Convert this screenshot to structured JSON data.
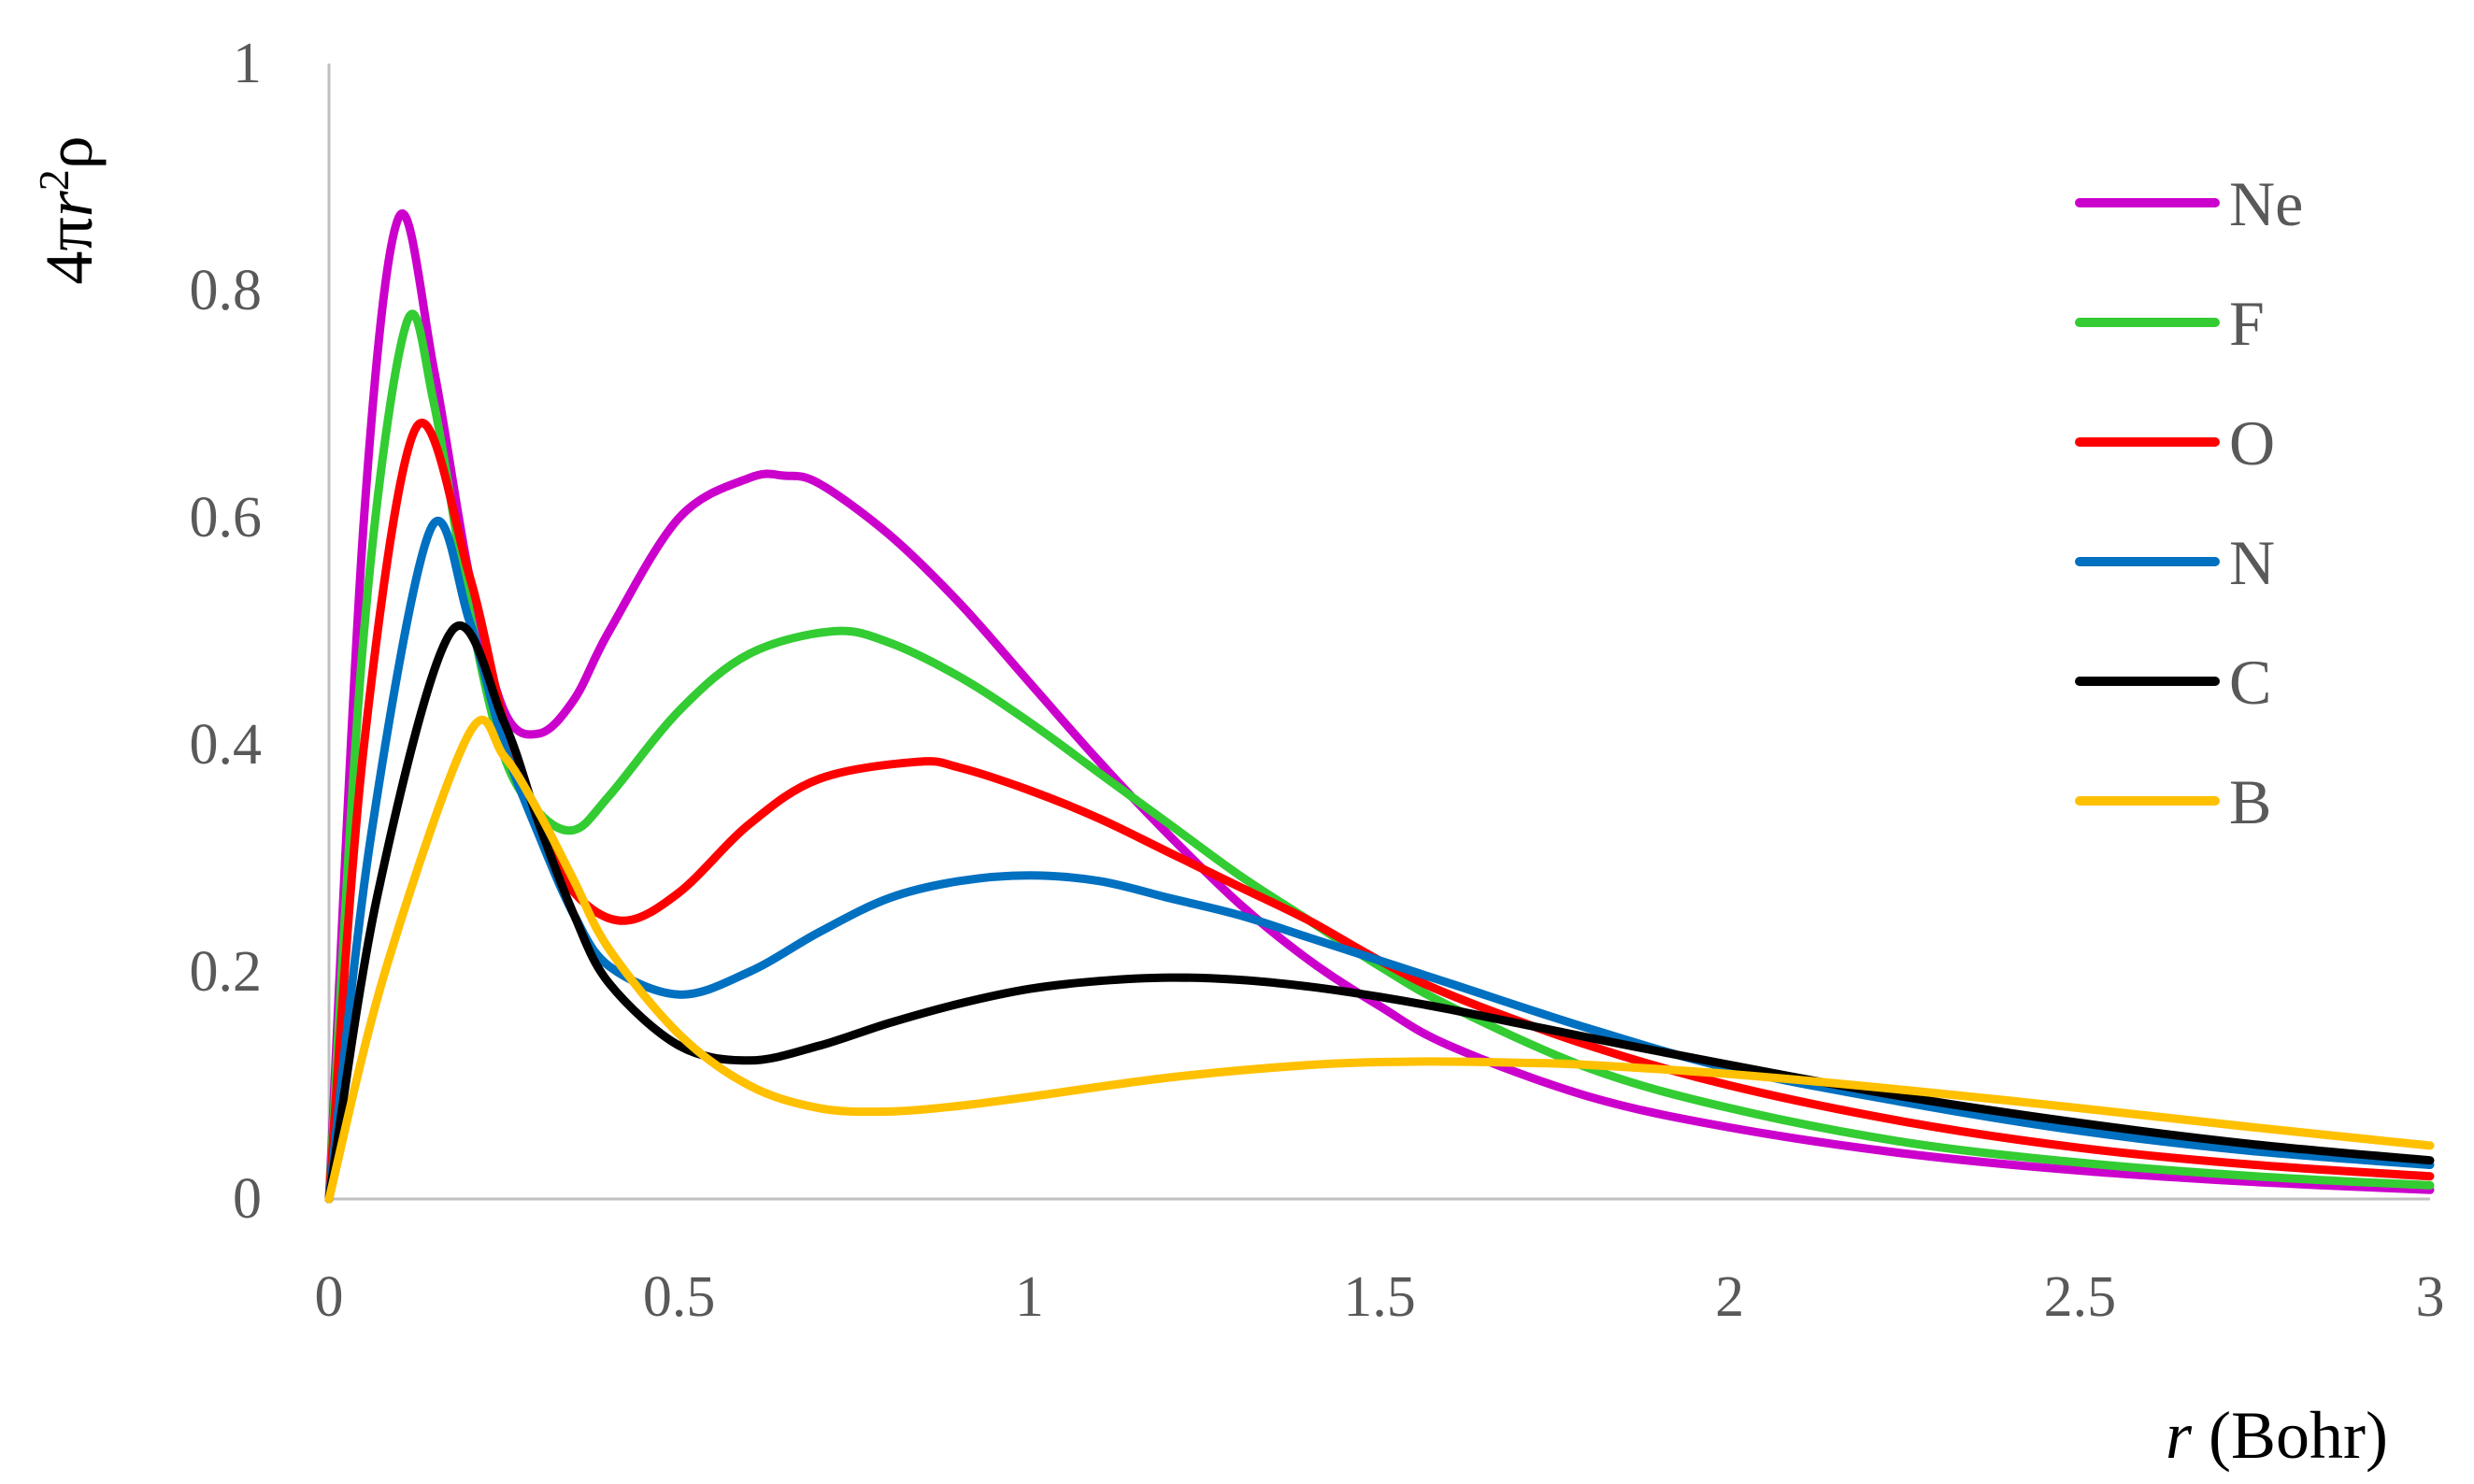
{
  "chart_data": {
    "type": "line",
    "title": "",
    "xlabel": "(Bohr)",
    "xlabel_var": "r",
    "ylabel": "4πr²ρ",
    "ylabel_parts": {
      "prefix": "4π",
      "var": "r",
      "sup": "2",
      "suffix": "ρ"
    },
    "xlim": [
      0,
      3
    ],
    "ylim": [
      0,
      1
    ],
    "x_ticks": [
      "0",
      "0.5",
      "1",
      "1.5",
      "2",
      "2.5",
      "3"
    ],
    "y_ticks": [
      "0",
      "0.2",
      "0.4",
      "0.6",
      "0.8",
      "1"
    ],
    "x_tick_values": [
      0,
      0.5,
      1,
      1.5,
      2,
      2.5,
      3
    ],
    "y_tick_values": [
      0,
      0.2,
      0.4,
      0.6,
      0.8,
      1
    ],
    "grid": false,
    "legend_position": "top-right",
    "series": [
      {
        "name": "Ne",
        "color": "#CC00CC",
        "x": [
          0,
          0.05,
          0.1,
          0.15,
          0.2,
          0.25,
          0.3,
          0.35,
          0.4,
          0.5,
          0.6,
          0.65,
          0.7,
          0.8,
          0.9,
          1.0,
          1.1,
          1.2,
          1.3,
          1.4,
          1.5,
          1.6,
          1.8,
          2.0,
          2.25,
          2.5,
          2.75,
          3.0
        ],
        "y": [
          0,
          0.6,
          0.865,
          0.73,
          0.55,
          0.43,
          0.41,
          0.44,
          0.5,
          0.6,
          0.635,
          0.637,
          0.63,
          0.585,
          0.525,
          0.455,
          0.385,
          0.32,
          0.26,
          0.21,
          0.17,
          0.135,
          0.09,
          0.063,
          0.04,
          0.025,
          0.015,
          0.008
        ]
      },
      {
        "name": "F",
        "color": "#33CC33",
        "x": [
          0,
          0.05,
          0.11,
          0.15,
          0.2,
          0.25,
          0.3,
          0.35,
          0.4,
          0.5,
          0.6,
          0.72,
          0.8,
          0.9,
          1.0,
          1.1,
          1.2,
          1.3,
          1.4,
          1.5,
          1.6,
          1.8,
          2.0,
          2.25,
          2.5,
          2.75,
          3.0
        ],
        "y": [
          0,
          0.5,
          0.77,
          0.7,
          0.52,
          0.39,
          0.34,
          0.325,
          0.355,
          0.43,
          0.48,
          0.5,
          0.49,
          0.46,
          0.42,
          0.375,
          0.33,
          0.285,
          0.245,
          0.205,
          0.17,
          0.115,
          0.08,
          0.05,
          0.032,
          0.02,
          0.012
        ]
      },
      {
        "name": "O",
        "color": "#FF0000",
        "x": [
          0,
          0.05,
          0.125,
          0.2,
          0.25,
          0.3,
          0.35,
          0.42,
          0.5,
          0.6,
          0.7,
          0.84,
          0.9,
          1.0,
          1.1,
          1.2,
          1.3,
          1.4,
          1.5,
          1.6,
          1.8,
          2.0,
          2.25,
          2.5,
          2.75,
          3.0
        ],
        "y": [
          0,
          0.4,
          0.68,
          0.55,
          0.42,
          0.33,
          0.27,
          0.245,
          0.27,
          0.33,
          0.37,
          0.385,
          0.38,
          0.36,
          0.335,
          0.305,
          0.275,
          0.245,
          0.21,
          0.18,
          0.135,
          0.1,
          0.068,
          0.045,
          0.03,
          0.02
        ]
      },
      {
        "name": "N",
        "color": "#0070C0",
        "x": [
          0,
          0.06,
          0.145,
          0.2,
          0.25,
          0.3,
          0.35,
          0.4,
          0.5,
          0.6,
          0.7,
          0.8,
          0.9,
          1.0,
          1.1,
          1.2,
          1.3,
          1.4,
          1.5,
          1.6,
          1.8,
          2.0,
          2.25,
          2.5,
          2.75,
          3.0
        ],
        "y": [
          0,
          0.32,
          0.59,
          0.51,
          0.4,
          0.32,
          0.25,
          0.205,
          0.18,
          0.2,
          0.235,
          0.265,
          0.28,
          0.285,
          0.28,
          0.265,
          0.25,
          0.23,
          0.21,
          0.19,
          0.15,
          0.115,
          0.085,
          0.06,
          0.042,
          0.03
        ]
      },
      {
        "name": "C",
        "color": "#000000",
        "x": [
          0,
          0.07,
          0.175,
          0.25,
          0.3,
          0.35,
          0.4,
          0.5,
          0.6,
          0.7,
          0.8,
          0.9,
          1.0,
          1.1,
          1.2,
          1.3,
          1.4,
          1.5,
          1.6,
          1.8,
          2.0,
          2.25,
          2.5,
          2.75,
          3.0
        ],
        "y": [
          0,
          0.27,
          0.5,
          0.42,
          0.33,
          0.25,
          0.19,
          0.135,
          0.122,
          0.135,
          0.155,
          0.172,
          0.185,
          0.192,
          0.195,
          0.193,
          0.187,
          0.178,
          0.167,
          0.142,
          0.118,
          0.09,
          0.067,
          0.048,
          0.034
        ]
      },
      {
        "name": "B",
        "color": "#FFC000",
        "x": [
          0,
          0.08,
          0.2,
          0.25,
          0.3,
          0.35,
          0.4,
          0.5,
          0.6,
          0.7,
          0.8,
          0.9,
          1.0,
          1.2,
          1.4,
          1.55,
          1.7,
          1.8,
          2.0,
          2.25,
          2.5,
          2.75,
          3.0
        ],
        "y": [
          0,
          0.2,
          0.41,
          0.39,
          0.34,
          0.28,
          0.22,
          0.145,
          0.1,
          0.08,
          0.077,
          0.082,
          0.09,
          0.107,
          0.118,
          0.121,
          0.12,
          0.118,
          0.11,
          0.096,
          0.08,
          0.063,
          0.047
        ]
      }
    ]
  }
}
